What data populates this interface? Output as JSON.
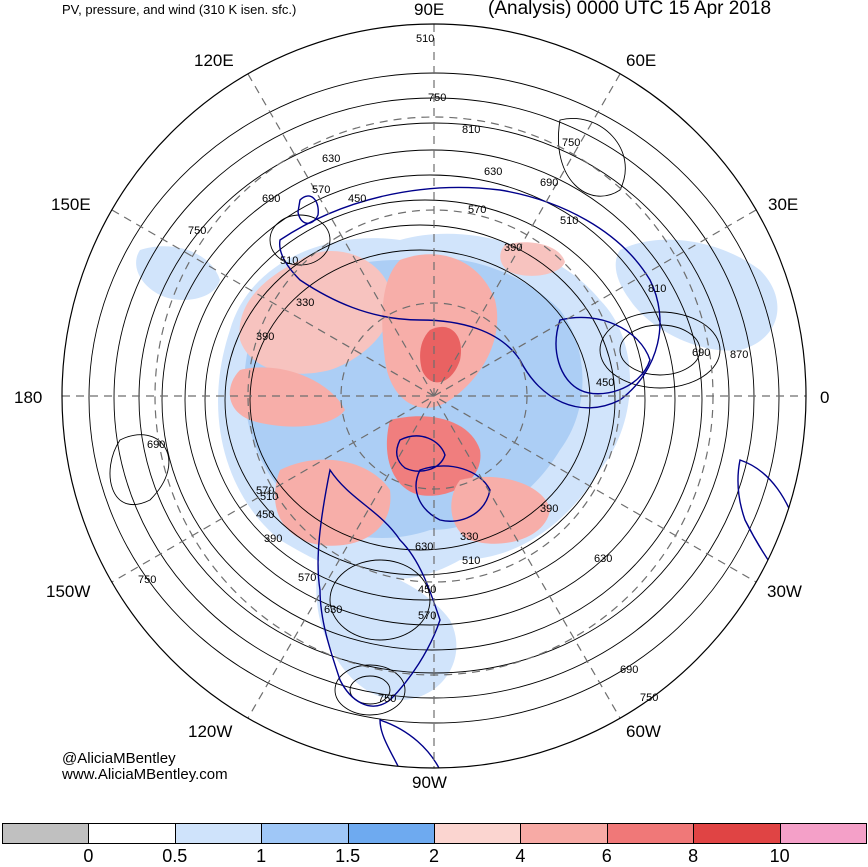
{
  "header": {
    "left_title": "PV, pressure, and wind (310 K isen. sfc.)",
    "right_title": "(Analysis) 0000 UTC 15 Apr 2018"
  },
  "longitude_labels": {
    "90E": "90E",
    "120E": "120E",
    "60E": "60E",
    "150E": "150E",
    "30E": "30E",
    "180": "180",
    "0": "0",
    "150W": "150W",
    "30W": "30W",
    "120W": "120W",
    "60W": "60W",
    "90W": "90W"
  },
  "credits": {
    "handle": "@AliciaMBentley",
    "website": "www.AliciaMBentley.com"
  },
  "contour_labels": [
    "510",
    "750",
    "810",
    "630",
    "750",
    "690",
    "630",
    "570",
    "450",
    "690",
    "570",
    "510",
    "750",
    "390",
    "510",
    "330",
    "390",
    "690",
    "870",
    "810",
    "450",
    "570",
    "510",
    "450",
    "390",
    "630",
    "390",
    "330",
    "510",
    "570",
    "630",
    "450",
    "570",
    "690",
    "750",
    "630",
    "690",
    "750",
    "750"
  ],
  "colorbar": {
    "labels": [
      "0",
      "0.5",
      "1",
      "1.5",
      "2",
      "4",
      "6",
      "8",
      "10"
    ],
    "colors": [
      "#c0c0c0",
      "#ffffff",
      "#cfe3fb",
      "#9fc7f7",
      "#6eaaf0",
      "#fbd5d0",
      "#f7aaa5",
      "#f07878",
      "#e04444",
      "#f4a0c8"
    ]
  },
  "colors": {
    "coast": "#00008b",
    "contour": "#000000",
    "grid": "#6e6e6e",
    "pv_blue": "#a8ccf5",
    "pv_red": "#f4a3a0",
    "pv_darkred": "#e85a5a"
  }
}
